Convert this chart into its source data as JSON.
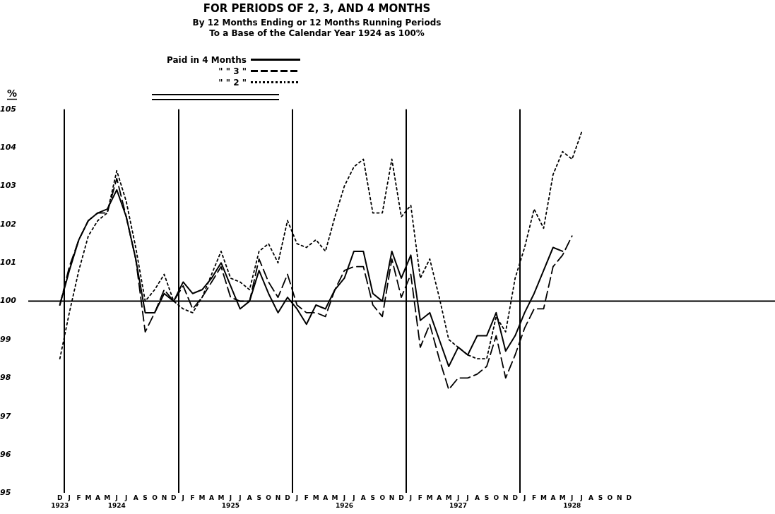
{
  "chart_data": {
    "type": "line",
    "title": "FOR PERIODS OF 2, 3, AND 4 MONTHS",
    "subtitle": "By 12 Months Ending or 12 Months Running Periods\nTo a Base of the Calendar Year 1924 as 100%",
    "ylabel": "%",
    "categories": [
      "D\n1923",
      "J",
      "F",
      "M",
      "A",
      "M",
      "J\n1924",
      "J",
      "A",
      "S",
      "O",
      "N",
      "D",
      "J",
      "F",
      "M",
      "A",
      "M",
      "J\n1925",
      "J",
      "A",
      "S",
      "O",
      "N",
      "D",
      "J",
      "F",
      "M",
      "A",
      "M",
      "J\n1926",
      "J",
      "A",
      "S",
      "O",
      "N",
      "D",
      "J",
      "F",
      "M",
      "A",
      "M",
      "J\n1927",
      "J",
      "A",
      "S",
      "O",
      "N",
      "D",
      "J",
      "F",
      "M",
      "A",
      "M",
      "J\n1928",
      "J",
      "A",
      "S",
      "O",
      "N",
      "D"
    ],
    "series": [
      {
        "name": "Paid in 4 Months",
        "color": "#000000",
        "line_style": "solid",
        "values": [
          99.9,
          100.8,
          101.6,
          102.1,
          102.3,
          102.4,
          102.9,
          102.2,
          101.1,
          99.7,
          99.7,
          100.2,
          100.0,
          100.5,
          100.2,
          100.3,
          100.6,
          101.0,
          100.4,
          99.8,
          100.0,
          100.8,
          100.2,
          99.7,
          100.1,
          99.8,
          99.4,
          99.9,
          99.8,
          100.3,
          100.6,
          101.3,
          101.3,
          100.2,
          100.0,
          101.3,
          100.6,
          101.2,
          99.5,
          99.7,
          99.0,
          98.3,
          98.8,
          98.6,
          99.1,
          99.1,
          99.7,
          98.7,
          99.1,
          99.7,
          100.2,
          100.8,
          101.4,
          101.3,
          null,
          null,
          null,
          null,
          null,
          null,
          null
        ]
      },
      {
        "name": "\" \" 3 \"",
        "color": "#000000",
        "line_style": "dashed",
        "values": [
          99.9,
          100.9,
          101.6,
          102.1,
          102.3,
          102.3,
          103.2,
          102.2,
          101.1,
          99.2,
          99.7,
          100.3,
          100.0,
          100.4,
          99.8,
          100.1,
          100.5,
          100.9,
          100.1,
          100.0,
          100.0,
          101.1,
          100.5,
          100.1,
          100.7,
          99.9,
          99.7,
          99.7,
          99.6,
          100.3,
          100.8,
          100.9,
          100.9,
          99.9,
          99.6,
          101.1,
          100.1,
          100.7,
          98.8,
          99.4,
          98.5,
          97.7,
          98.0,
          98.0,
          98.1,
          98.3,
          99.1,
          98.0,
          98.6,
          99.3,
          99.8,
          99.8,
          100.9,
          101.2,
          101.7,
          null,
          null,
          null,
          null,
          null,
          null
        ]
      },
      {
        "name": "\" \" 2 \"",
        "color": "#000000",
        "line_style": "dotted",
        "values": [
          98.5,
          99.7,
          100.8,
          101.7,
          102.1,
          102.3,
          103.4,
          102.6,
          101.4,
          100.0,
          100.3,
          100.7,
          100.0,
          99.8,
          99.7,
          100.1,
          100.7,
          101.3,
          100.6,
          100.5,
          100.3,
          101.3,
          101.5,
          101.0,
          102.1,
          101.5,
          101.4,
          101.6,
          101.3,
          102.2,
          103.0,
          103.5,
          103.7,
          102.3,
          102.3,
          103.7,
          102.2,
          102.5,
          100.6,
          101.1,
          100.1,
          99.0,
          98.8,
          98.6,
          98.5,
          98.5,
          99.6,
          99.2,
          100.6,
          101.4,
          102.4,
          101.9,
          103.3,
          103.9,
          103.7,
          104.4,
          null,
          null,
          null,
          null,
          null
        ]
      }
    ],
    "ylim": [
      95,
      105
    ],
    "yticks": [
      95,
      96,
      97,
      98,
      99,
      100,
      101,
      102,
      103,
      104,
      105
    ],
    "ref_lines": [
      {
        "axis": "y",
        "value": 100
      }
    ],
    "grid": "x",
    "legend": "top"
  }
}
